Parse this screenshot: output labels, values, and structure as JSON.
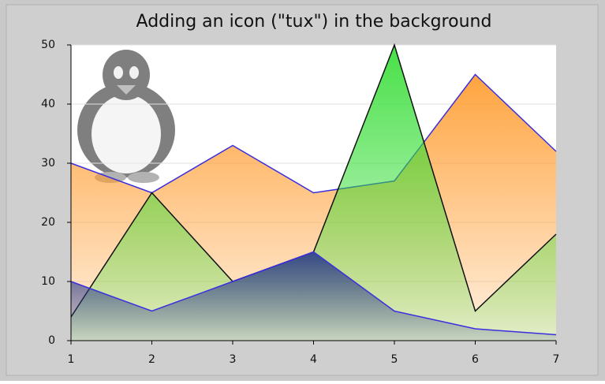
{
  "chart_data": {
    "type": "area",
    "title": "Adding an icon (\"tux\") in the background",
    "x": [
      1,
      2,
      3,
      4,
      5,
      6,
      7
    ],
    "xlim": [
      1,
      7
    ],
    "xticks": [
      1,
      2,
      3,
      4,
      5,
      6,
      7
    ],
    "ylim": [
      0,
      50
    ],
    "yticks": [
      0,
      10,
      20,
      30,
      40,
      50
    ],
    "grid": true,
    "series": [
      {
        "color": "#ff9a2a",
        "line_color": "#3a2ee0",
        "values": [
          30,
          25,
          33,
          25,
          27,
          45,
          32
        ]
      },
      {
        "color": "#33dd33",
        "line_color": "#111111",
        "values": [
          4,
          25,
          10,
          15,
          50,
          5,
          18
        ]
      },
      {
        "color": "#2a3a8a",
        "line_color": "#3a2ee0",
        "values": [
          10,
          5,
          10,
          15,
          5,
          2,
          1
        ]
      }
    ]
  }
}
